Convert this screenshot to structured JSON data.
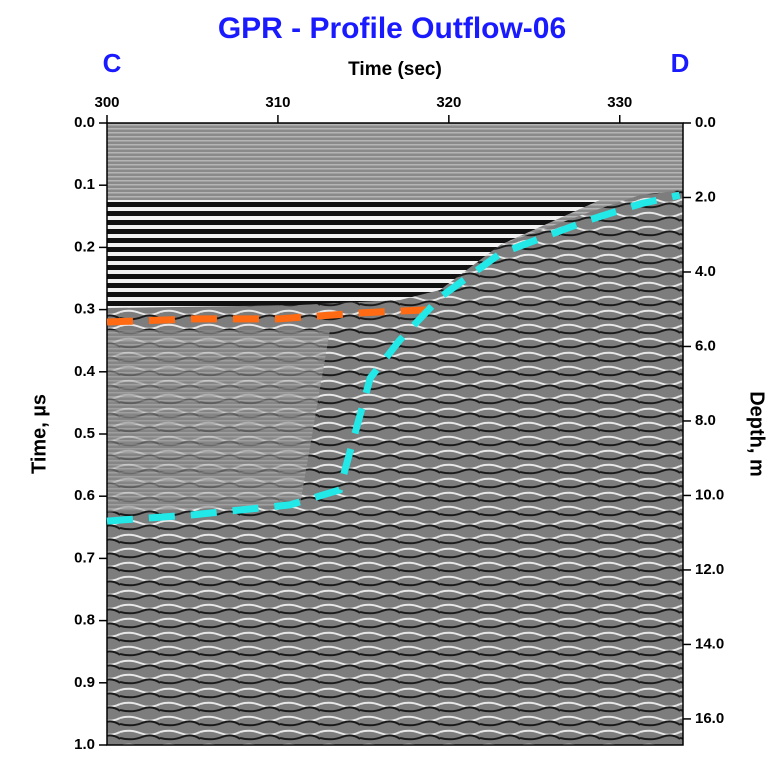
{
  "chart_data": {
    "type": "radargram",
    "title": "GPR - Profile Outflow-06",
    "left_marker": "C",
    "right_marker": "D",
    "xlabel": "Time (sec)",
    "ylabel": "Time, µs",
    "y2label": "Depth, m",
    "xlim": [
      300,
      333.7
    ],
    "xticks": [
      300,
      310,
      320,
      330
    ],
    "ylim": [
      0,
      1.0
    ],
    "yticks": [
      {
        "value": 0,
        "label": "0.0"
      },
      {
        "value": 0.1,
        "label": "0.1"
      },
      {
        "value": 0.2,
        "label": "0.2"
      },
      {
        "value": 0.3,
        "label": "0.3"
      },
      {
        "value": 0.4,
        "label": "0.4"
      },
      {
        "value": 0.5,
        "label": "0.5"
      },
      {
        "value": 0.6,
        "label": "0.6"
      },
      {
        "value": 0.7,
        "label": "0.7"
      },
      {
        "value": 0.8,
        "label": "0.8"
      },
      {
        "value": 0.9,
        "label": "0.9"
      },
      {
        "value": 1.0,
        "label": "1.0"
      }
    ],
    "y2lim": [
      0,
      16.7
    ],
    "y2ticks": [
      {
        "value": 0,
        "label": "0.0"
      },
      {
        "value": 2,
        "label": "2.0"
      },
      {
        "value": 4,
        "label": "4.0"
      },
      {
        "value": 6,
        "label": "6.0"
      },
      {
        "value": 8,
        "label": "8.0"
      },
      {
        "value": 10,
        "label": "10.0"
      },
      {
        "value": 12,
        "label": "12.0"
      },
      {
        "value": 14,
        "label": "14.0"
      },
      {
        "value": 16,
        "label": "16.0"
      }
    ],
    "series": [
      {
        "color": "#ff6a13",
        "x": [
          300,
          305,
          310,
          315,
          319
        ],
        "y": [
          0.32,
          0.315,
          0.315,
          0.305,
          0.3
        ]
      },
      {
        "color": "#22e8e8",
        "x": [
          300,
          305,
          310.7,
          313.6,
          315.4,
          317.1,
          319.5,
          323,
          328.2,
          331.2,
          333.5
        ],
        "y": [
          0.64,
          0.63,
          0.614,
          0.59,
          0.41,
          0.35,
          0.28,
          0.21,
          0.156,
          0.13,
          0.116
        ]
      }
    ]
  }
}
